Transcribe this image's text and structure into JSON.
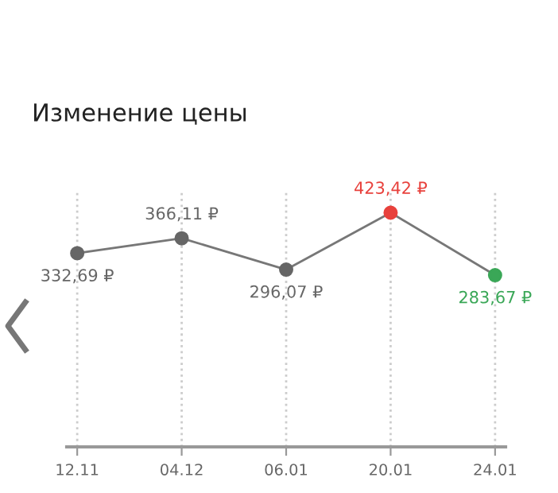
{
  "chart_data": {
    "type": "line",
    "title": "Изменение цены",
    "categories": [
      "12.11",
      "04.12",
      "06.01",
      "20.01",
      "24.01"
    ],
    "series": [
      {
        "color": "#777777",
        "colors": [
          "#666666",
          "#666666",
          "#666666",
          "#e8413c",
          "#3aa757"
        ],
        "values": [
          332.69,
          366.11,
          296.07,
          423.42,
          283.67
        ],
        "value_labels": [
          "332,69 ₽",
          "366,11 ₽",
          "296,07 ₽",
          "423,42 ₽",
          "283,67 ₽"
        ]
      }
    ],
    "grid": "x",
    "marker": "circle",
    "line_style": "solid",
    "legend": false
  }
}
